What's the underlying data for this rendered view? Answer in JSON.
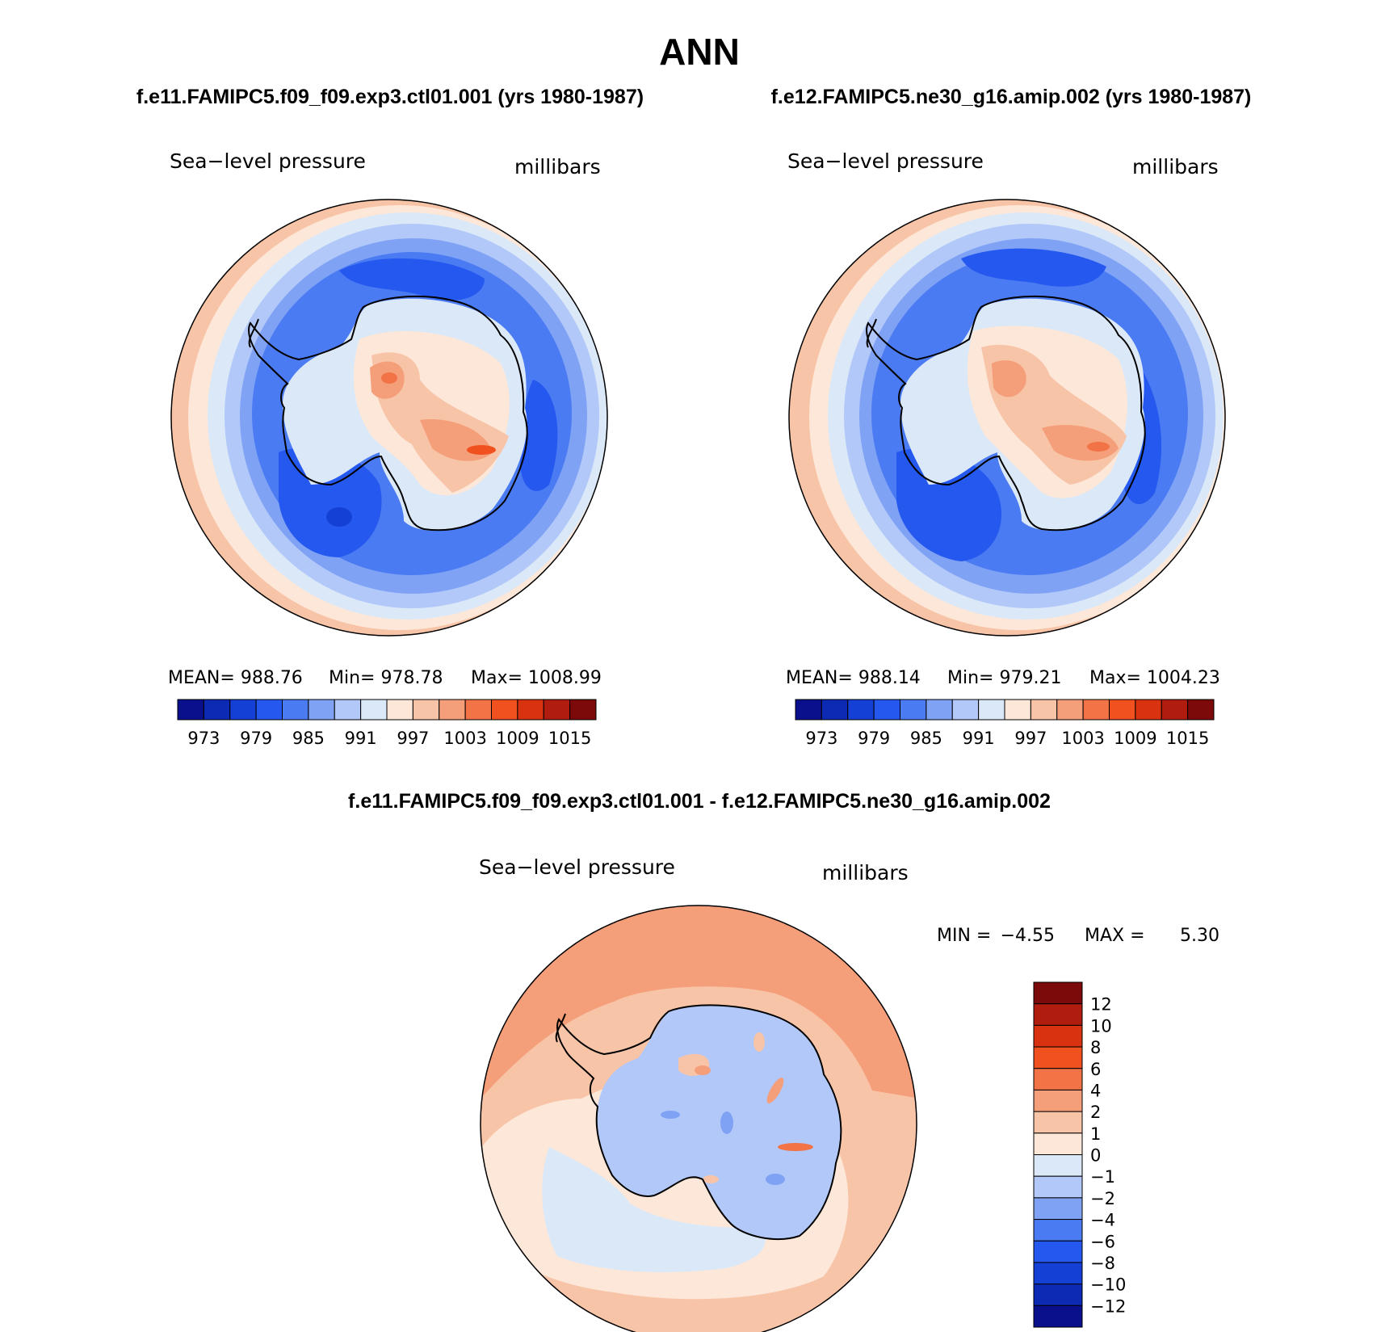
{
  "figure": {
    "title": "ANN",
    "left_case": "f.e11.FAMIPC5.f09_f09.exp3.ctl01.001 (yrs 1980-1987)",
    "right_case": "f.e12.FAMIPC5.ne30_g16.amip.002 (yrs 1980-1987)",
    "diff_case": "f.e11.FAMIPC5.f09_f09.exp3.ctl01.001 - f.e12.FAMIPC5.ne30_g16.amip.002"
  },
  "chart_data": [
    {
      "type": "heatmap",
      "projection": "south polar stereographic",
      "variable": "Sea−level pressure",
      "units": "millibars",
      "stats": {
        "mean_label": "MEAN=",
        "mean": "988.76",
        "min_label": "Min=",
        "min": "978.78",
        "max_label": "Max=",
        "max": "1008.99"
      },
      "colorbar": {
        "orientation": "horizontal",
        "levels": [
          970,
          973,
          976,
          979,
          982,
          985,
          988,
          991,
          994,
          997,
          1000,
          1003,
          1006,
          1009,
          1012,
          1015,
          1018
        ],
        "tick_labels": [
          "973",
          "979",
          "985",
          "991",
          "997",
          "1003",
          "1009",
          "1015"
        ],
        "colors": [
          "#0a0f8c",
          "#0d2ab5",
          "#1540d6",
          "#2458ef",
          "#4b7bf2",
          "#7fa2f5",
          "#b2c8f9",
          "#dbe8f8",
          "#fde7d8",
          "#f8c4a8",
          "#f59e7a",
          "#f27346",
          "#f0511f",
          "#d93210",
          "#b01d0f",
          "#7c0a0a"
        ]
      }
    },
    {
      "type": "heatmap",
      "projection": "south polar stereographic",
      "variable": "Sea−level pressure",
      "units": "millibars",
      "stats": {
        "mean_label": "MEAN=",
        "mean": "988.14",
        "min_label": "Min=",
        "min": "979.21",
        "max_label": "Max=",
        "max": "1004.23"
      },
      "colorbar": {
        "orientation": "horizontal",
        "levels": [
          970,
          973,
          976,
          979,
          982,
          985,
          988,
          991,
          994,
          997,
          1000,
          1003,
          1006,
          1009,
          1012,
          1015,
          1018
        ],
        "tick_labels": [
          "973",
          "979",
          "985",
          "991",
          "997",
          "1003",
          "1009",
          "1015"
        ],
        "colors": [
          "#0a0f8c",
          "#0d2ab5",
          "#1540d6",
          "#2458ef",
          "#4b7bf2",
          "#7fa2f5",
          "#b2c8f9",
          "#dbe8f8",
          "#fde7d8",
          "#f8c4a8",
          "#f59e7a",
          "#f27346",
          "#f0511f",
          "#d93210",
          "#b01d0f",
          "#7c0a0a"
        ]
      }
    },
    {
      "type": "heatmap",
      "projection": "south polar stereographic",
      "variable": "Sea−level pressure",
      "units": "millibars",
      "stats": {
        "min_label": "MIN =",
        "min": "−4.55",
        "max_label": "MAX =",
        "max": "5.30"
      },
      "colorbar": {
        "orientation": "vertical",
        "tick_labels": [
          "12",
          "10",
          "8",
          "6",
          "4",
          "2",
          "1",
          "0",
          "−1",
          "−2",
          "−4",
          "−6",
          "−8",
          "−10",
          "−12"
        ],
        "colors": [
          "#7c0a0a",
          "#b01d0f",
          "#d93210",
          "#f0511f",
          "#f27346",
          "#f59e7a",
          "#f8c4a8",
          "#fde7d8",
          "#dbe8f8",
          "#b2c8f9",
          "#7fa2f5",
          "#4b7bf2",
          "#2458ef",
          "#1540d6",
          "#0d2ab5",
          "#0a0f8c"
        ]
      }
    }
  ]
}
